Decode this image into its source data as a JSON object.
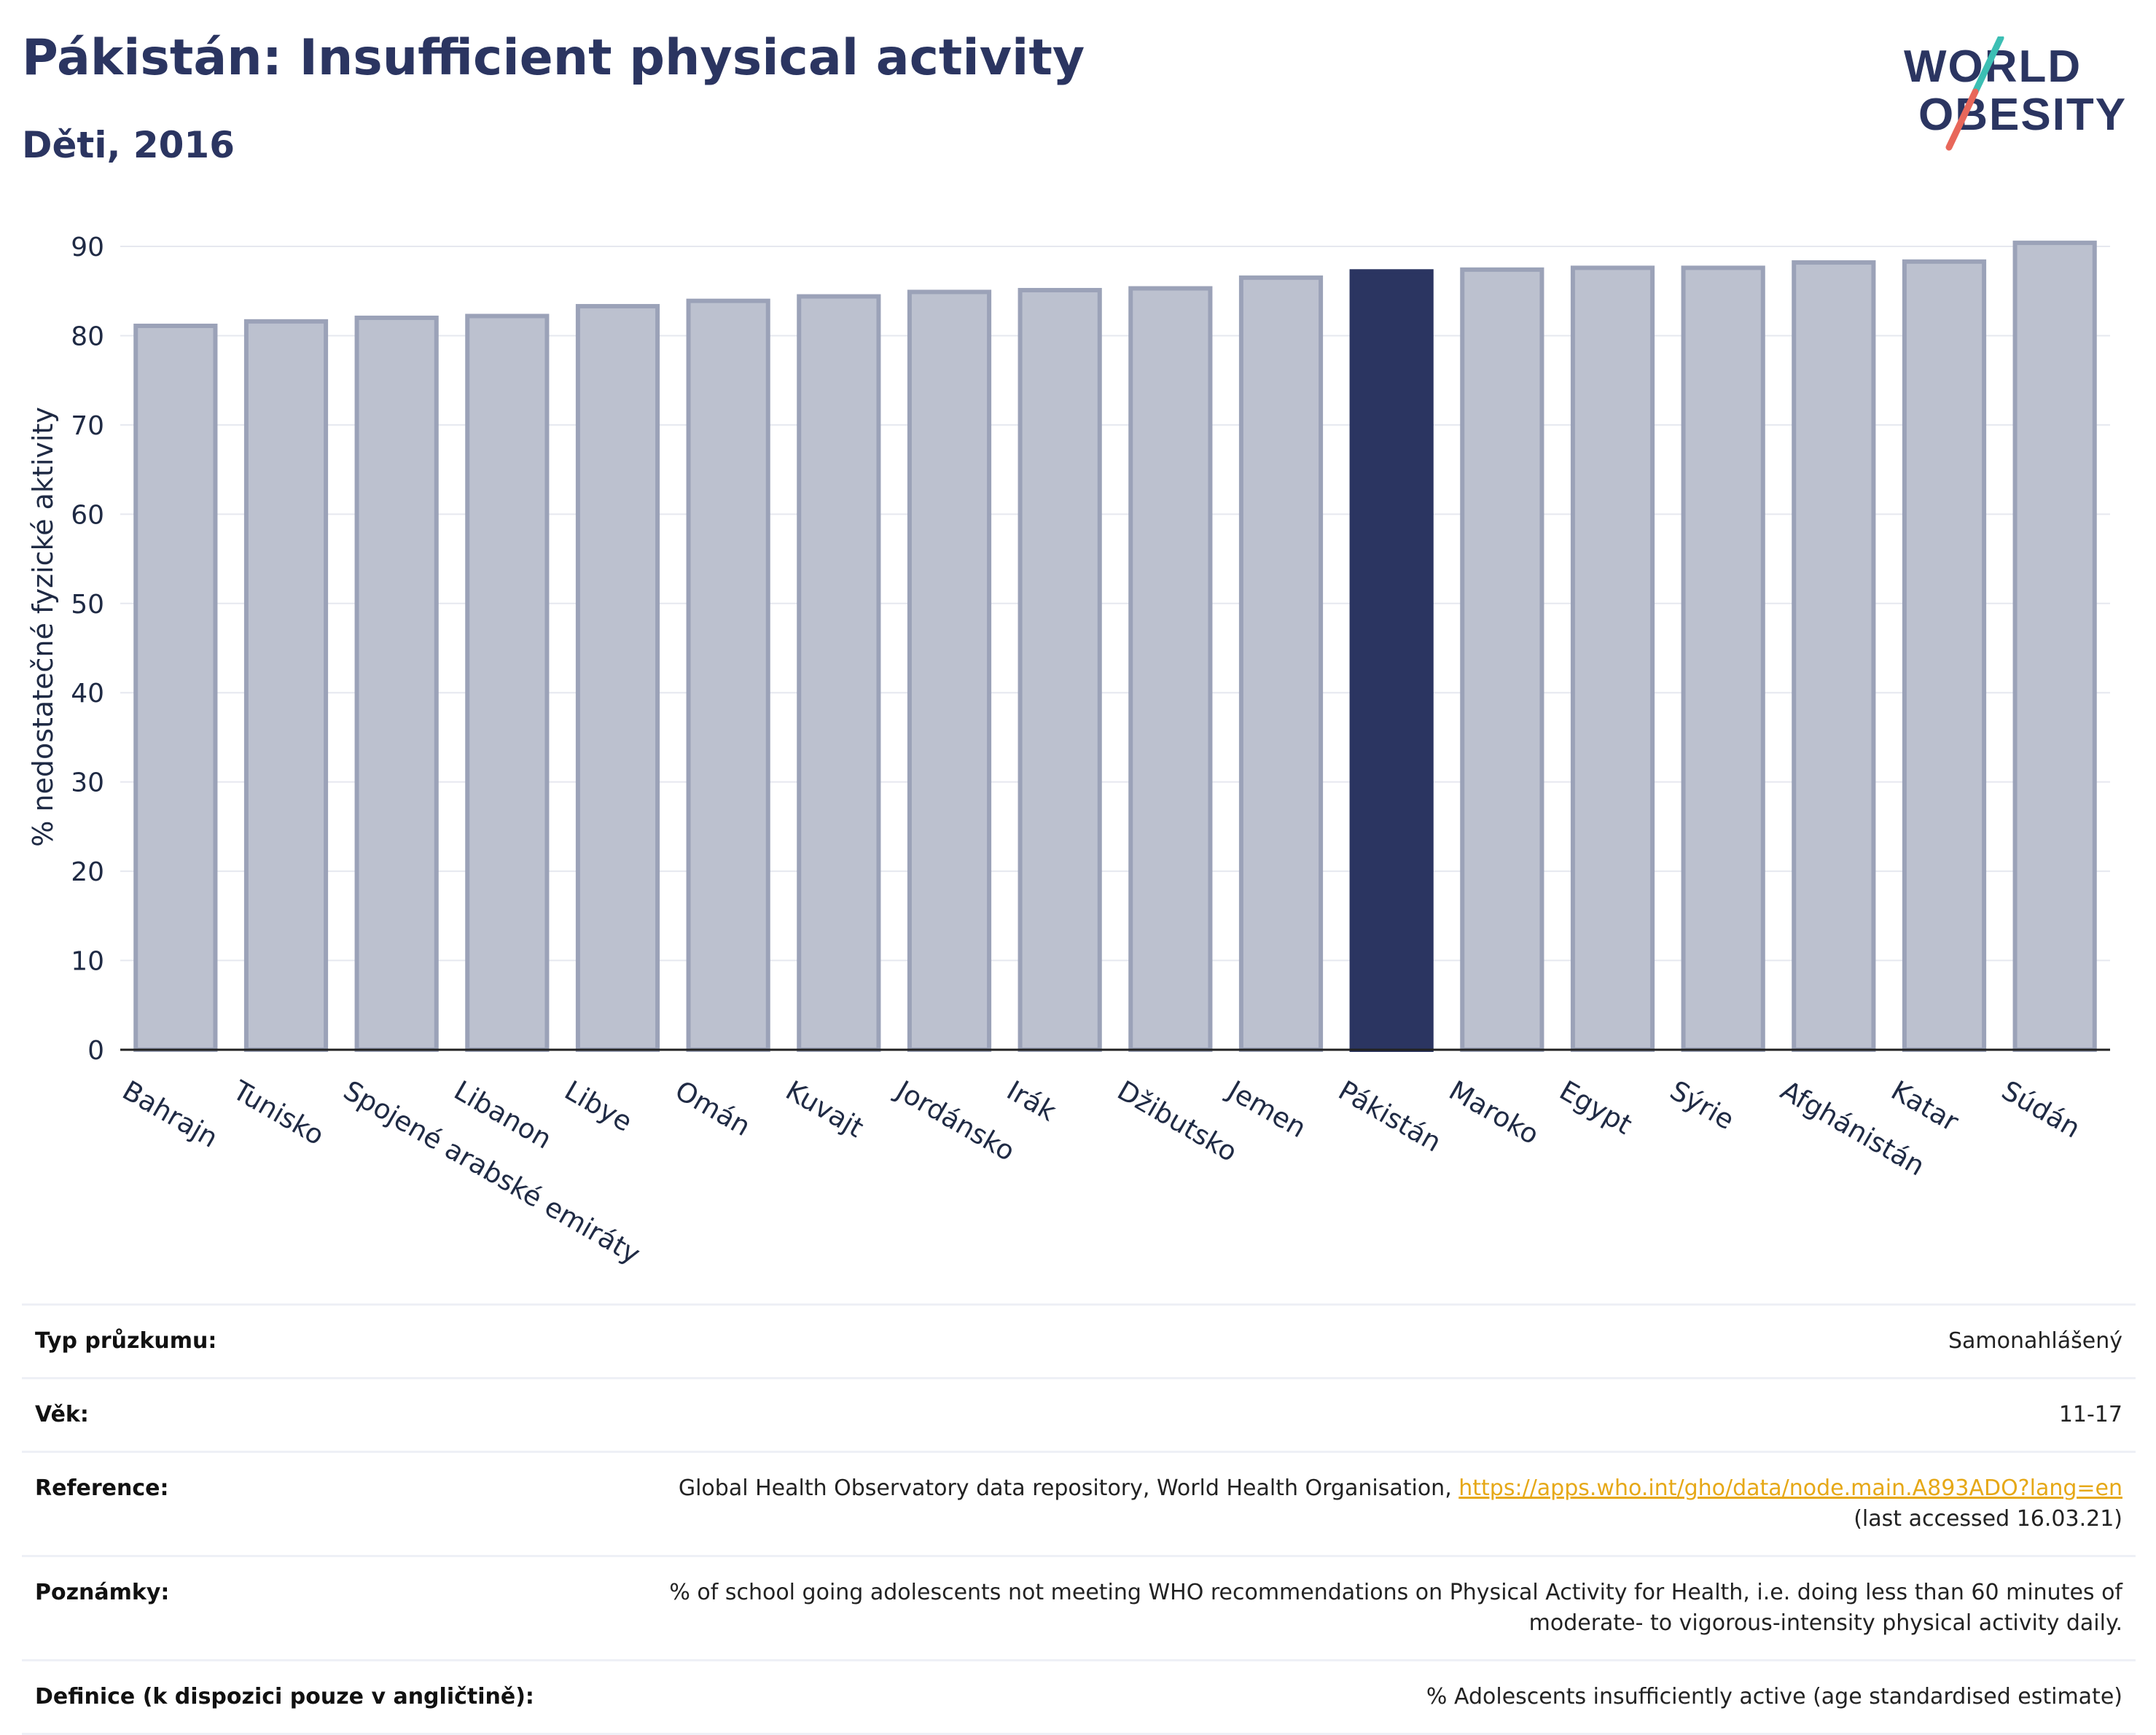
{
  "header": {
    "title": "Pákistán: Insufficient physical activity",
    "subtitle": "Děti, 2016"
  },
  "logo": {
    "line1": "WORLD",
    "line2": "OBESITY",
    "accent_teal": "#3cbfb4",
    "accent_red": "#e8675a",
    "text_color": "#2b3561"
  },
  "colors": {
    "bar_fill": "#bcc1cf",
    "bar_stroke": "#9ba2b8",
    "highlight": "#2b3561",
    "axis": "#222222",
    "grid": "#e6e8ef"
  },
  "chart_data": {
    "type": "bar",
    "categories": [
      "Bahrajn",
      "Tunisko",
      "Spojené arabské emiráty",
      "Libanon",
      "Libye",
      "Omán",
      "Kuvajt",
      "Jordánsko",
      "Irák",
      "Džibutsko",
      "Jemen",
      "Pákistán",
      "Maroko",
      "Egypt",
      "Sýrie",
      "Afghánistán",
      "Katar",
      "Súdán"
    ],
    "values": [
      81.1,
      81.6,
      82.0,
      82.2,
      83.3,
      83.9,
      84.4,
      84.9,
      85.1,
      85.3,
      86.5,
      87.2,
      87.4,
      87.6,
      87.6,
      88.2,
      88.3,
      90.4
    ],
    "highlight": "Pákistán",
    "ylabel": "% nedostatečné fyzické aktivity",
    "xlabel": "",
    "ylim": [
      0,
      90
    ],
    "yticks": [
      0,
      10,
      20,
      30,
      40,
      50,
      60,
      70,
      80,
      90
    ],
    "grid": true
  },
  "info": {
    "survey_label": "Typ průzkumu:",
    "survey_value": "Samonahlášený",
    "age_label": "Věk:",
    "age_value": "11-17",
    "reference_label": "Reference:",
    "reference_text": "Global Health Observatory data repository, World Health Organisation, ",
    "reference_link": "https://apps.who.int/gho/data/node.main.A893ADO?lang=en",
    "reference_accessed": "(last accessed 16.03.21)",
    "notes_label": "Poznámky:",
    "notes_line1": "% of school going adolescents not meeting WHO recommendations on Physical Activity for Health, i.e. doing less than 60 minutes of",
    "notes_line2": "moderate- to vigorous-intensity physical activity daily.",
    "definition_label": "Definice (k dispozici pouze v angličtině):",
    "definition_value": "% Adolescents insufficiently active (age standardised estimate)"
  }
}
